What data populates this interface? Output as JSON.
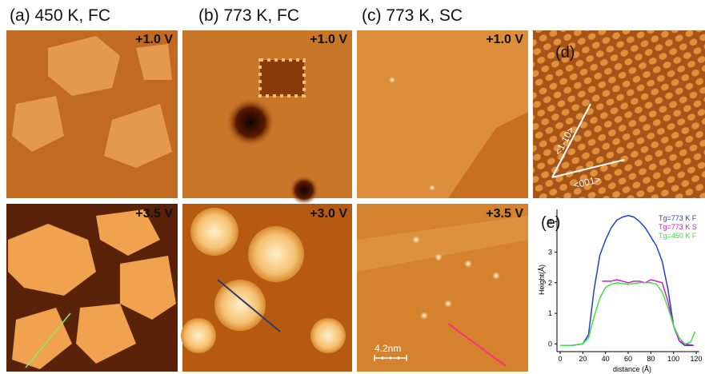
{
  "column_labels": [
    "(a) 450 K, FC",
    "(b) 773 K, FC",
    "(c) 773 K, SC"
  ],
  "panels": {
    "a_top": "+1.0 V",
    "b_top": "+1.0 V",
    "c_top": "+1.0 V",
    "d_label": "(d)",
    "d_dir1": "<1-10>",
    "d_dir2": "<001>",
    "a_bottom": "+3.5 V",
    "b_bottom": "+3.0 V",
    "c_bottom": "+3.5 V",
    "scale_bar": "4.2nm",
    "e_label": "(e)"
  },
  "chart_data": {
    "type": "line",
    "x_label": "distance (Å)",
    "y_label": "Height(Å)",
    "xlim": [
      0,
      120
    ],
    "xticks": [
      0,
      20,
      40,
      60,
      80,
      100,
      120
    ],
    "ylim": [
      -0.2,
      4.4
    ],
    "yticks": [
      0,
      1,
      2,
      3,
      4
    ],
    "series": [
      {
        "name": "Tg=773 K F",
        "color": "#1f3fd8",
        "x": [
          0,
          10,
          20,
          25,
          30,
          35,
          40,
          45,
          50,
          55,
          60,
          65,
          70,
          75,
          80,
          85,
          90,
          95,
          100,
          105,
          110,
          117
        ],
        "values": [
          -0.05,
          -0.05,
          0,
          0.3,
          1.8,
          2.9,
          3.4,
          3.8,
          4.05,
          4.15,
          4.2,
          4.15,
          4.0,
          3.8,
          3.5,
          3.2,
          2.7,
          1.8,
          0.6,
          0.1,
          -0.05,
          -0.05
        ]
      },
      {
        "name": "Tg=773 K S",
        "color": "#d020c8",
        "x": [
          37,
          45,
          50,
          55,
          60,
          65,
          70,
          75,
          80,
          85,
          90,
          95,
          100,
          105,
          110,
          118
        ],
        "values": [
          2.05,
          2.05,
          2.1,
          2.05,
          2.0,
          2.05,
          2.05,
          2.0,
          2.1,
          2.05,
          2.0,
          1.4,
          0.6,
          0.1,
          0,
          -0.05
        ]
      },
      {
        "name": "Tg=450 K F",
        "color": "#40e040",
        "x": [
          0,
          10,
          20,
          25,
          30,
          35,
          40,
          45,
          50,
          60,
          70,
          80,
          85,
          90,
          95,
          100,
          105,
          110,
          115,
          119
        ],
        "values": [
          -0.05,
          -0.05,
          0,
          0.2,
          0.9,
          1.5,
          1.85,
          1.95,
          2.0,
          1.95,
          2.0,
          2.0,
          1.95,
          1.7,
          1.2,
          0.6,
          0.2,
          0,
          0.05,
          0.4
        ]
      }
    ]
  }
}
